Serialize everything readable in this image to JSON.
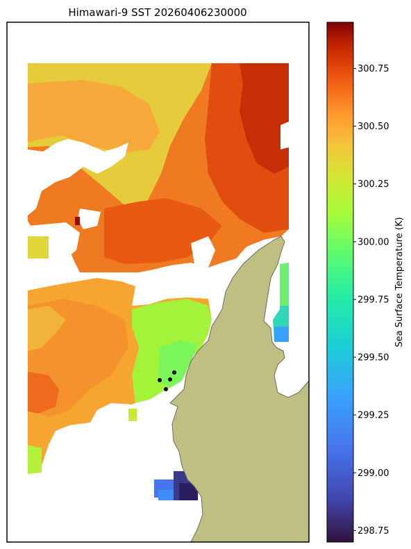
{
  "chart_data": {
    "type": "heatmap",
    "title": "Himawari-9 SST 20260406230000",
    "colorbar": {
      "label": "Sea Surface Temperature (K)",
      "range": [
        298.7,
        300.95
      ],
      "ticks": [
        298.75,
        299.0,
        299.25,
        299.5,
        299.75,
        300.0,
        300.25,
        300.5,
        300.75
      ],
      "tick_labels": [
        "298.75",
        "299.00",
        "299.25",
        "299.50",
        "299.75",
        "300.00",
        "300.25",
        "300.50",
        "300.75"
      ],
      "colormap": "turbo",
      "placement": "right"
    },
    "grid": false,
    "land_color": "#bfbf84",
    "land_edge_color": "#6b6b55",
    "regions": [
      {
        "name": "north-east-warm",
        "approx_sst_k": 300.75
      },
      {
        "name": "north-west",
        "approx_sst_k": 300.2
      },
      {
        "name": "central-band",
        "approx_sst_k": 300.55
      },
      {
        "name": "south-west",
        "approx_sst_k": 300.35
      },
      {
        "name": "near-coast-green",
        "approx_sst_k": 299.85
      },
      {
        "name": "far-east-strip",
        "approx_sst_k": 299.4
      },
      {
        "name": "southern-cool-patch",
        "approx_sst_k": 298.9
      }
    ],
    "markers": [
      {
        "label": "",
        "color": "#000000"
      },
      {
        "label": "",
        "color": "#000000"
      },
      {
        "label": "",
        "color": "#000000"
      },
      {
        "label": "",
        "color": "#000000"
      }
    ]
  }
}
